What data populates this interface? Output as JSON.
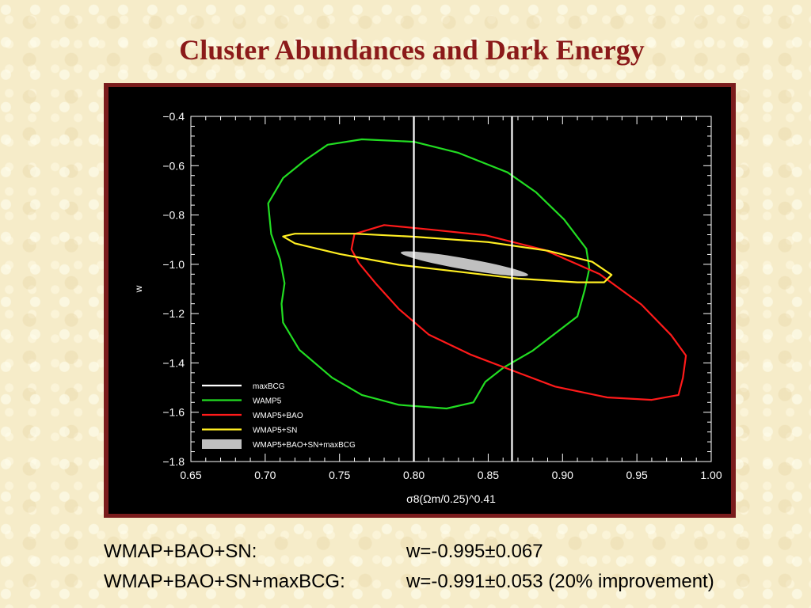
{
  "slide": {
    "title": "Cluster Abundances and Dark Energy"
  },
  "results": [
    {
      "label": "WMAP+BAO+SN:",
      "value": "w=-0.995±0.067"
    },
    {
      "label": "WMAP+BAO+SN+maxBCG:",
      "value": "w=-0.991±0.053 (20% improvement)"
    }
  ],
  "chart_data": {
    "type": "contour",
    "xlabel": "σ8(Ωm/0.25)^0.41",
    "ylabel": "w",
    "xlim": [
      0.65,
      1.0
    ],
    "ylim": [
      -1.8,
      -0.4
    ],
    "xticks": [
      "0.65",
      "0.70",
      "0.75",
      "0.80",
      "0.85",
      "0.90",
      "0.95",
      "1.00"
    ],
    "yticks": [
      "−0.4",
      "−0.6",
      "−0.8",
      "−1.0",
      "−1.2",
      "−1.4",
      "−1.6",
      "−1.8"
    ],
    "background": "#000000",
    "legend_position": "lower-left",
    "series": [
      {
        "name": "maxBCG",
        "color": "#ffffff",
        "kind": "vertical-lines",
        "x": [
          0.8,
          0.866
        ]
      },
      {
        "name": "WAMP5",
        "color": "#22dd22",
        "kind": "contour",
        "points": [
          [
            0.727,
            -0.577
          ],
          [
            0.742,
            -0.515
          ],
          [
            0.765,
            -0.493
          ],
          [
            0.8,
            -0.503
          ],
          [
            0.83,
            -0.548
          ],
          [
            0.863,
            -0.627
          ],
          [
            0.882,
            -0.707
          ],
          [
            0.901,
            -0.818
          ],
          [
            0.916,
            -0.937
          ],
          [
            0.918,
            -1.017
          ],
          [
            0.915,
            -1.103
          ],
          [
            0.91,
            -1.211
          ],
          [
            0.88,
            -1.35
          ],
          [
            0.86,
            -1.42
          ],
          [
            0.848,
            -1.477
          ],
          [
            0.84,
            -1.56
          ],
          [
            0.822,
            -1.585
          ],
          [
            0.79,
            -1.57
          ],
          [
            0.765,
            -1.53
          ],
          [
            0.745,
            -1.46
          ],
          [
            0.723,
            -1.347
          ],
          [
            0.712,
            -1.236
          ],
          [
            0.711,
            -1.16
          ],
          [
            0.713,
            -1.077
          ],
          [
            0.71,
            -0.98
          ],
          [
            0.704,
            -0.877
          ],
          [
            0.702,
            -0.753
          ],
          [
            0.712,
            -0.65
          ]
        ]
      },
      {
        "name": "WMAP5+BAO",
        "color": "#ff1a1a",
        "kind": "contour",
        "points": [
          [
            0.76,
            -0.877
          ],
          [
            0.78,
            -0.841
          ],
          [
            0.813,
            -0.86
          ],
          [
            0.848,
            -0.882
          ],
          [
            0.888,
            -0.942
          ],
          [
            0.925,
            -1.04
          ],
          [
            0.953,
            -1.163
          ],
          [
            0.973,
            -1.287
          ],
          [
            0.983,
            -1.37
          ],
          [
            0.981,
            -1.46
          ],
          [
            0.978,
            -1.53
          ],
          [
            0.96,
            -1.55
          ],
          [
            0.93,
            -1.54
          ],
          [
            0.895,
            -1.496
          ],
          [
            0.865,
            -1.428
          ],
          [
            0.838,
            -1.366
          ],
          [
            0.81,
            -1.285
          ],
          [
            0.79,
            -1.182
          ],
          [
            0.775,
            -1.082
          ],
          [
            0.763,
            -0.995
          ],
          [
            0.758,
            -0.939
          ]
        ]
      },
      {
        "name": "WMAP5+SN",
        "color": "#ffee22",
        "kind": "contour",
        "points": [
          [
            0.712,
            -0.887
          ],
          [
            0.72,
            -0.876
          ],
          [
            0.76,
            -0.876
          ],
          [
            0.8,
            -0.888
          ],
          [
            0.85,
            -0.91
          ],
          [
            0.89,
            -0.945
          ],
          [
            0.92,
            -0.99
          ],
          [
            0.933,
            -1.043
          ],
          [
            0.928,
            -1.073
          ],
          [
            0.91,
            -1.073
          ],
          [
            0.87,
            -1.058
          ],
          [
            0.83,
            -1.03
          ],
          [
            0.79,
            -1.002
          ],
          [
            0.75,
            -0.958
          ],
          [
            0.72,
            -0.915
          ]
        ]
      },
      {
        "name": "WMAP5+BAO+SN+maxBCG",
        "color": "#c0c0c0",
        "kind": "filled-ellipse",
        "center": [
          0.834,
          -0.998
        ],
        "semi_x": 0.0435,
        "semi_y": 0.045,
        "tilt_deg": -10
      }
    ]
  }
}
